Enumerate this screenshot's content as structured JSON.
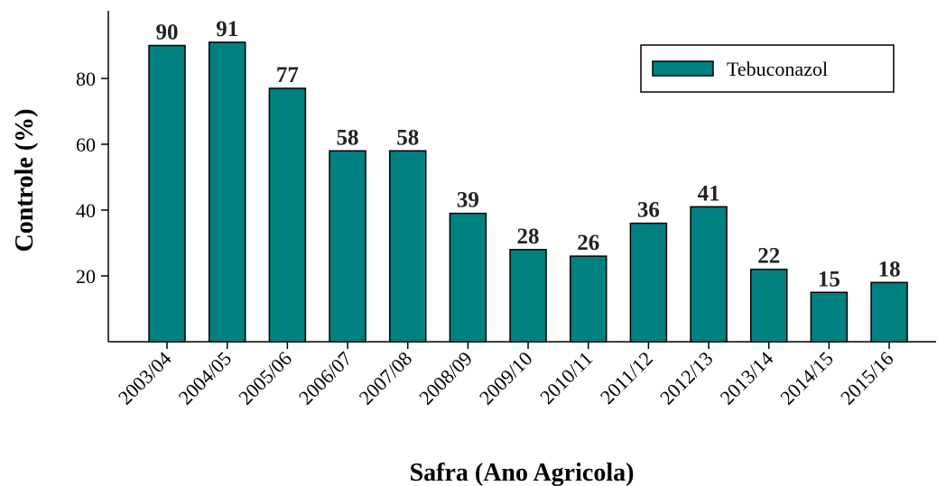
{
  "chart_data": {
    "type": "bar",
    "x_label": "Safra (Ano Agricola)",
    "y_label": "Controle (%)",
    "categories": [
      "2003/04",
      "2004/05",
      "2005/06",
      "2006/07",
      "2007/08",
      "2008/09",
      "2009/10",
      "2010/11",
      "2011/12",
      "2012/13",
      "2013/14",
      "2014/15",
      "2015/16"
    ],
    "series": [
      {
        "name": "Tebuconazol",
        "color": "#008080",
        "values": [
          90,
          91,
          77,
          58,
          58,
          39,
          28,
          26,
          36,
          41,
          22,
          15,
          18
        ]
      }
    ],
    "ylim": [
      0,
      100
    ],
    "yticks": [
      20,
      40,
      60,
      80
    ],
    "legend": "upper right"
  }
}
